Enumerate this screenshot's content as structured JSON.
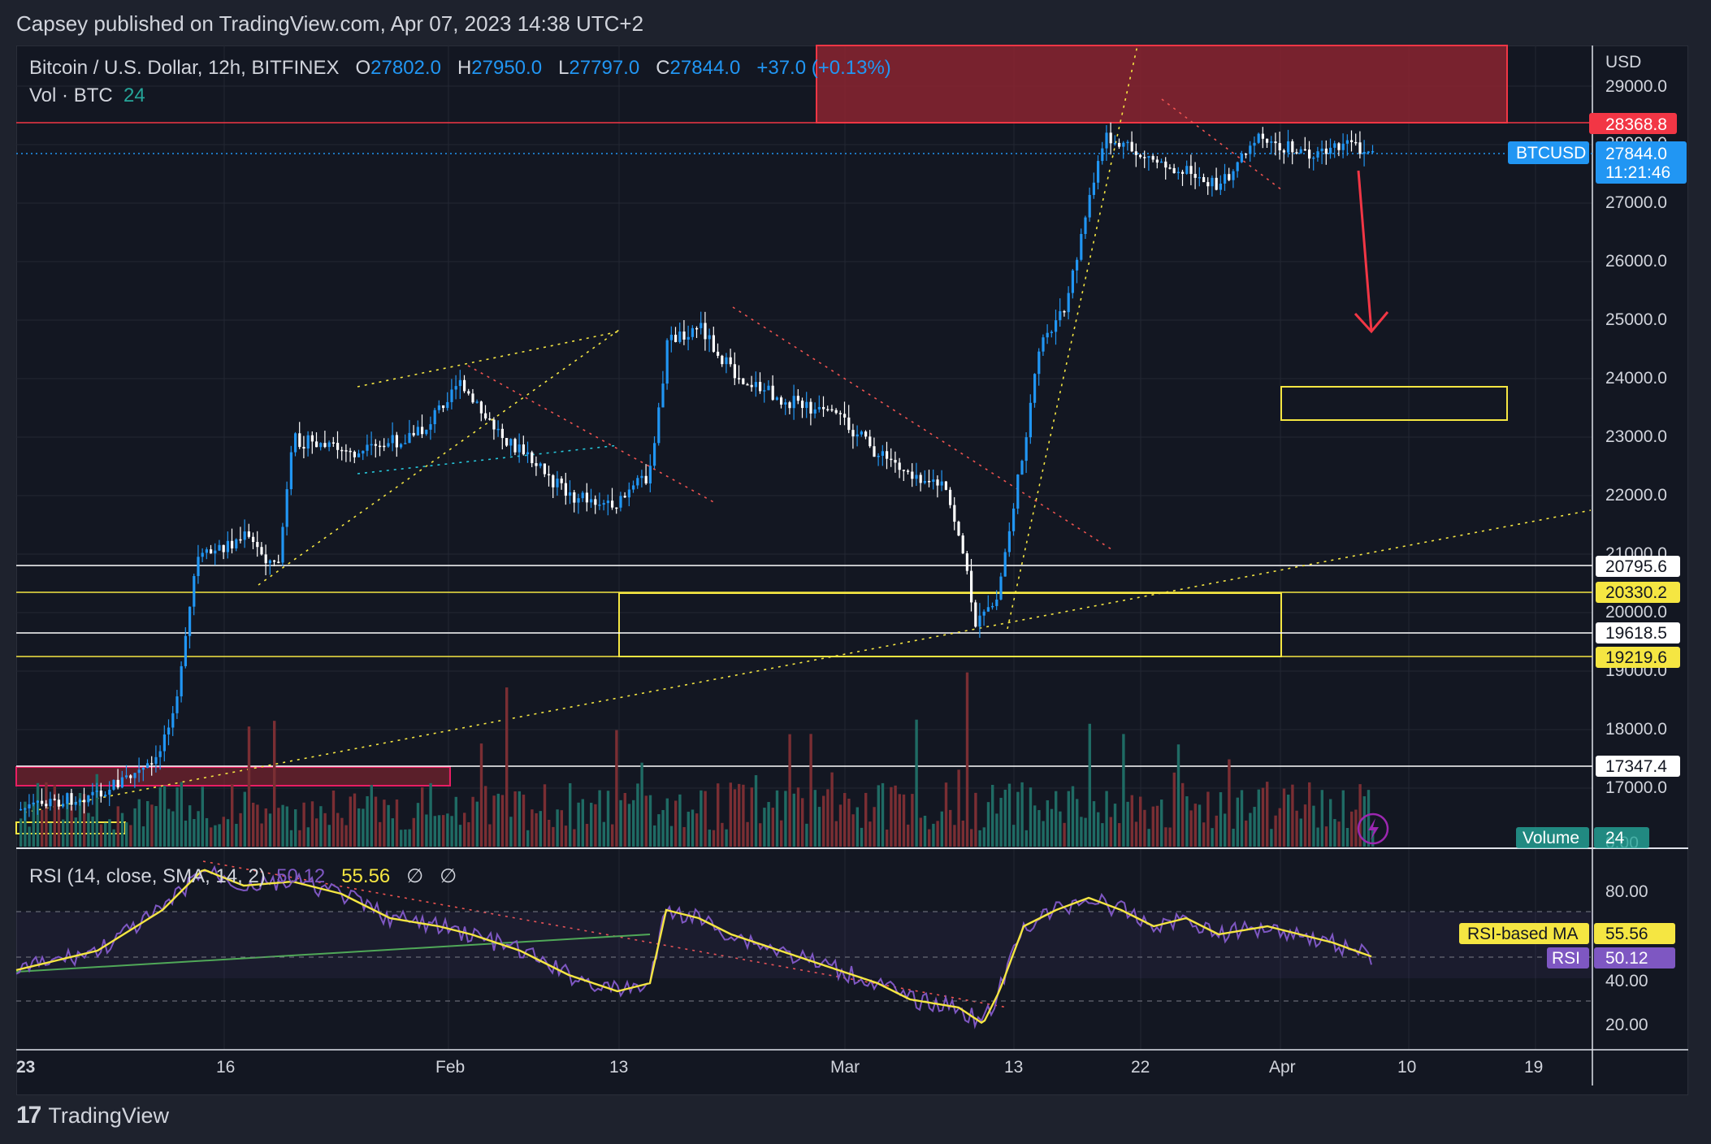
{
  "header": {
    "publisher_line": "Capsey published on TradingView.com, Apr 07, 2023 14:38 UTC+2"
  },
  "legend": {
    "symbol": "Bitcoin / U.S. Dollar, 12h, BITFINEX",
    "o_label": "O",
    "o": "27802.0",
    "h_label": "H",
    "h": "27950.0",
    "l_label": "L",
    "l": "27797.0",
    "c_label": "C",
    "c": "27844.0",
    "change": "+37.0 (+0.13%)",
    "vol_label": "Vol · BTC",
    "vol_value": "24"
  },
  "rsi_legend": {
    "label": "RSI (14, close, SMA, 14, 2)",
    "rsi_value": "50.12",
    "ma_value": "55.56",
    "icon1": "∅",
    "icon2": "∅"
  },
  "axis": {
    "currency": "USD",
    "price_ticks": [
      "29000.0",
      "28000.0",
      "27000.0",
      "26000.0",
      "25000.0",
      "24000.0",
      "23000.0",
      "22000.0",
      "21000.0",
      "20000.0",
      "19000.0",
      "18000.0",
      "17000.0",
      "0.00"
    ],
    "rsi_ticks": [
      "80.00",
      "40.00",
      "20.00"
    ],
    "time_ticks": [
      "23",
      "16",
      "Feb",
      "13",
      "Mar",
      "13",
      "22",
      "Apr",
      "10",
      "19"
    ]
  },
  "price_labels": {
    "resistance": "28368.8",
    "symbol_tag": "BTCUSD",
    "last": "27844.0",
    "countdown": "11:21:46",
    "lvl_20795": "20795.6",
    "lvl_20330": "20330.2",
    "lvl_19618": "19618.5",
    "lvl_19219": "19219.6",
    "lvl_17347": "17347.4",
    "volume_tag": "Volume",
    "volume_val": "24",
    "rsi_ma_tag": "RSI-based MA",
    "rsi_ma_val": "55.56",
    "rsi_tag": "RSI",
    "rsi_val": "50.12"
  },
  "colors": {
    "up": "#2196f3",
    "down": "#ffffff",
    "vol_up": "#1f6b64",
    "vol_down": "#7a2e33",
    "resistance_zone": "#8b2430",
    "support_box": "#f5e642",
    "rsi": "#7e57c2",
    "rsi_ma": "#f5e642"
  },
  "footer": {
    "brand": "TradingView"
  }
}
